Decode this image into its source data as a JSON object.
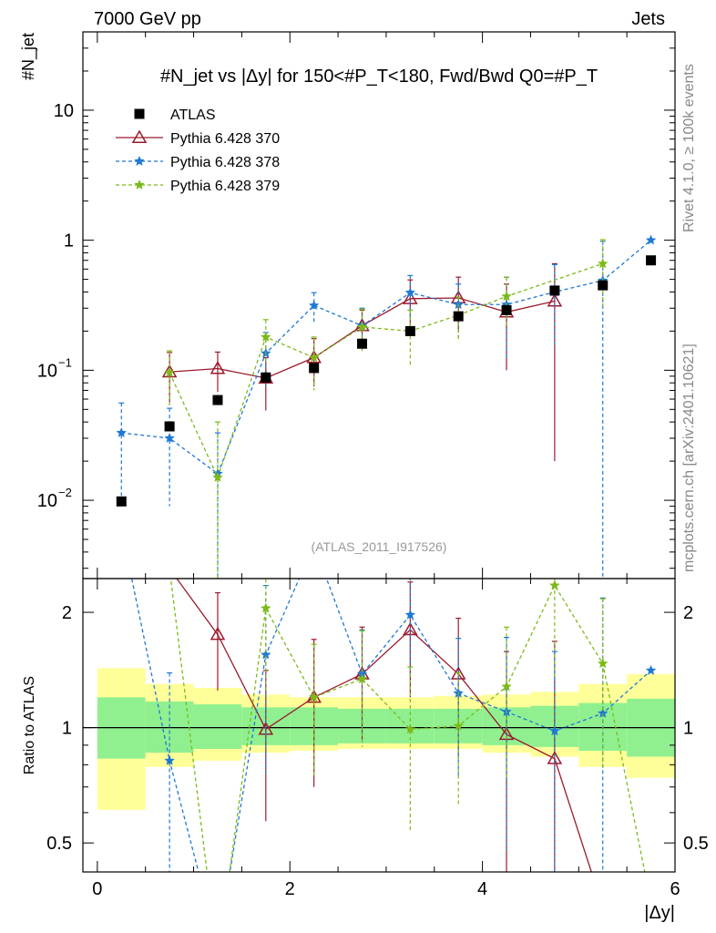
{
  "header": {
    "energy": "7000 GeV pp",
    "category": "Jets"
  },
  "side": {
    "rivet": "Rivet 4.1.0, ≥ 100k events",
    "source": "mcplots.cern.ch [arXiv:2401.10621]"
  },
  "colors": {
    "atlas": "#000000",
    "p370": "#9b1b2e",
    "p378": "#1f78d4",
    "p379": "#7cba1a",
    "band_inner": "#90f090",
    "band_outer": "#ffff99"
  },
  "chart_data": {
    "type": "scatter",
    "title": "#N_jet vs |Δy| for 150<#P_T<180, Fwd/Bwd Q0=#P_T",
    "ylabel_top": "#N_jet",
    "ylabel_bottom": "Ratio to ATLAS",
    "xlabel": "|Δy|",
    "watermark": "(ATLAS_2011_I917526)",
    "xlim": [
      -0.15,
      6.0
    ],
    "ylim_top": [
      0.0025,
      40
    ],
    "ylim_bottom": [
      0.42,
      2.45
    ],
    "x_ticks": [
      0,
      2,
      4,
      6
    ],
    "y_ticks_top": [
      {
        "v": 0.01,
        "label": "10",
        "exp": "−2"
      },
      {
        "v": 0.1,
        "label": "10",
        "exp": "−1"
      },
      {
        "v": 1,
        "label": "1",
        "exp": ""
      },
      {
        "v": 10,
        "label": "10",
        "exp": ""
      }
    ],
    "y_ticks_bottom": [
      {
        "v": 0.5,
        "label": "0.5"
      },
      {
        "v": 1,
        "label": "1"
      },
      {
        "v": 2,
        "label": "2"
      }
    ],
    "legend": [
      "ATLAS",
      "Pythia 6.428 370",
      "Pythia 6.428 378",
      "Pythia 6.428 379"
    ],
    "x": [
      0.25,
      0.75,
      1.25,
      1.75,
      2.25,
      2.75,
      3.25,
      3.75,
      4.25,
      4.75,
      5.25,
      5.75
    ],
    "atlas": {
      "values": [
        0.0098,
        0.037,
        0.059,
        0.088,
        0.104,
        0.16,
        0.2,
        0.26,
        0.29,
        0.41,
        0.45,
        0.7
      ],
      "band_inner": [
        [
          0.83,
          1.2
        ],
        [
          0.86,
          1.17
        ],
        [
          0.88,
          1.15
        ],
        [
          0.9,
          1.13
        ],
        [
          0.9,
          1.13
        ],
        [
          0.91,
          1.12
        ],
        [
          0.91,
          1.12
        ],
        [
          0.91,
          1.12
        ],
        [
          0.9,
          1.13
        ],
        [
          0.89,
          1.14
        ],
        [
          0.87,
          1.16
        ],
        [
          0.84,
          1.19
        ]
      ],
      "band_outer": [
        [
          0.61,
          1.43
        ],
        [
          0.79,
          1.3
        ],
        [
          0.82,
          1.27
        ],
        [
          0.86,
          1.22
        ],
        [
          0.87,
          1.2
        ],
        [
          0.88,
          1.2
        ],
        [
          0.88,
          1.2
        ],
        [
          0.88,
          1.21
        ],
        [
          0.86,
          1.22
        ],
        [
          0.84,
          1.24
        ],
        [
          0.79,
          1.3
        ],
        [
          0.74,
          1.38
        ]
      ]
    },
    "series": [
      {
        "name": "Pythia 6.428 370",
        "marker": "triangle",
        "dash": "",
        "values": [
          null,
          0.097,
          0.103,
          0.087,
          0.125,
          0.22,
          0.355,
          0.36,
          0.28,
          0.34,
          null,
          null
        ],
        "errors": [
          null,
          0.04,
          0.035,
          0.038,
          0.05,
          0.07,
          0.14,
          0.16,
          0.18,
          0.32,
          null,
          null
        ],
        "ratio": [
          null,
          2.6,
          1.75,
          0.99,
          1.2,
          1.38,
          1.8,
          1.38,
          0.96,
          0.83,
          0.34,
          null
        ],
        "ratio_err": [
          null,
          null,
          0.5,
          0.42,
          0.5,
          0.45,
          0.6,
          0.55,
          0.62,
          0.85,
          null,
          null
        ]
      },
      {
        "name": "Pythia 6.428 378",
        "marker": "star",
        "dash": "4,3",
        "values": [
          0.033,
          0.03,
          0.016,
          0.135,
          0.315,
          0.22,
          0.395,
          0.32,
          0.32,
          0.4,
          0.49,
          1.0
        ],
        "errors": [
          0.023,
          0.021,
          0.017,
          0.06,
          0.08,
          0.08,
          0.14,
          0.14,
          0.2,
          0.25,
          0.49,
          null
        ],
        "ratio": [
          3.3,
          0.82,
          0.27,
          1.55,
          3.0,
          1.38,
          1.97,
          1.23,
          1.1,
          0.98,
          1.09,
          1.41
        ],
        "ratio_err": [
          null,
          0.57,
          null,
          0.8,
          null,
          0.42,
          0.6,
          0.48,
          0.62,
          0.6,
          1.09,
          null
        ]
      },
      {
        "name": "Pythia 6.428 379",
        "marker": "star",
        "dash": "4,3",
        "values": [
          null,
          0.096,
          0.015,
          0.18,
          0.125,
          0.215,
          0.2,
          0.265,
          0.37,
          null,
          0.66,
          null
        ],
        "errors": [
          null,
          0.045,
          0.025,
          0.065,
          0.055,
          0.08,
          0.09,
          0.1,
          0.15,
          null,
          0.35,
          null
        ],
        "ratio": [
          null,
          2.6,
          0.25,
          2.05,
          1.2,
          1.34,
          0.99,
          1.01,
          1.28,
          2.35,
          1.47,
          0.35
        ],
        "ratio_err": [
          null,
          null,
          null,
          0.8,
          0.45,
          0.45,
          0.45,
          0.38,
          0.55,
          1.0,
          0.7,
          null
        ]
      }
    ]
  }
}
